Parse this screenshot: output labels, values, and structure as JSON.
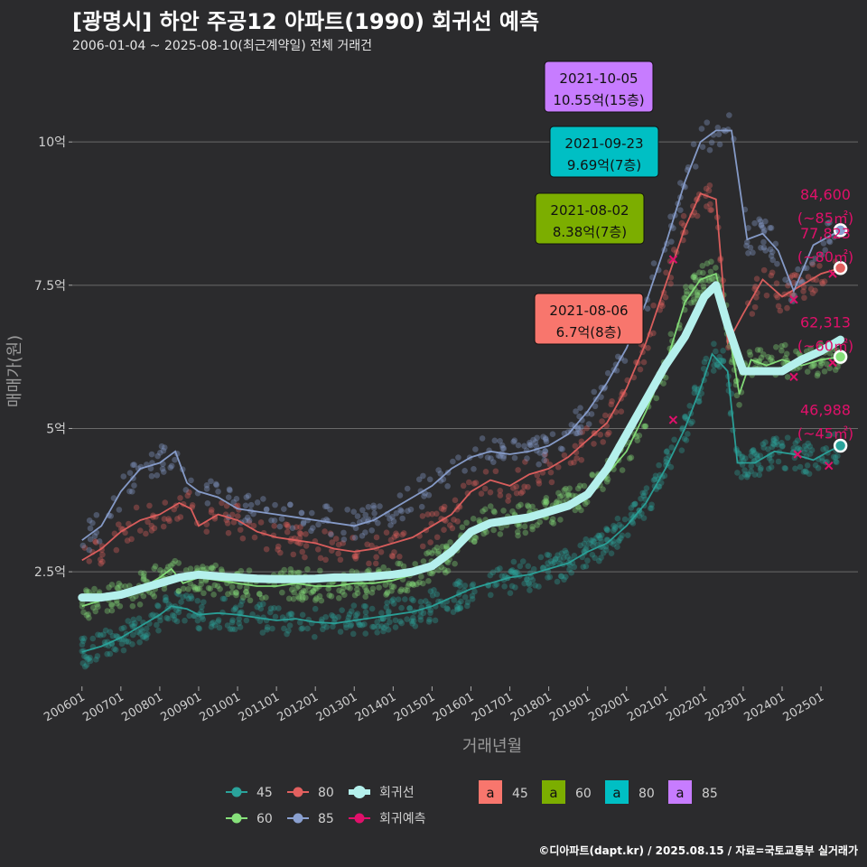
{
  "header": {
    "title": "[광명시] 하안 주공12 아파트(1990) 회귀선 예측",
    "subtitle": "2006-01-04 ~ 2025-08-10(최근계약일) 전체 거래건"
  },
  "footer": {
    "credit": "©디아파트(dapt.kr) / 2025.08.15 / 자료=국토교통부 실거래가"
  },
  "colors": {
    "background": "#2b2b2d",
    "grid": "#6a6a6a",
    "s45": "#2aa39b",
    "s60": "#86e07a",
    "s80": "#e2605f",
    "s85": "#8aa0d0",
    "regression": "#b4f0ec",
    "prediction": "#e0106a",
    "box45": "#f8766d",
    "box60": "#7cae00",
    "box80": "#00bfc4",
    "box85": "#c77cff"
  },
  "chart_data": {
    "type": "line",
    "xlabel": "거래년월",
    "ylabel": "매매가(원)",
    "x_ticks": [
      "200601",
      "200701",
      "200801",
      "200901",
      "201001",
      "201101",
      "201201",
      "201301",
      "201401",
      "201501",
      "201601",
      "201701",
      "201801",
      "201901",
      "202001",
      "202101",
      "202201",
      "202301",
      "202401",
      "202501"
    ],
    "y_ticks": [
      {
        "value": 2.5,
        "label": "2.5억"
      },
      {
        "value": 5,
        "label": "5억"
      },
      {
        "value": 7.5,
        "label": "7.5억"
      },
      {
        "value": 10,
        "label": "10억"
      }
    ],
    "ylim": [
      0.5,
      11.5
    ],
    "xlim": [
      2005.75,
      2025.95
    ],
    "series": [
      {
        "name": "45",
        "key": "s45",
        "points": [
          [
            2006.0,
            1.1
          ],
          [
            2006.5,
            1.2
          ],
          [
            2007.0,
            1.35
          ],
          [
            2007.5,
            1.55
          ],
          [
            2008.0,
            1.75
          ],
          [
            2008.3,
            1.9
          ],
          [
            2008.7,
            1.85
          ],
          [
            2009.0,
            1.75
          ],
          [
            2009.5,
            1.78
          ],
          [
            2010.0,
            1.75
          ],
          [
            2010.5,
            1.7
          ],
          [
            2011.0,
            1.65
          ],
          [
            2011.5,
            1.68
          ],
          [
            2012.0,
            1.62
          ],
          [
            2012.5,
            1.6
          ],
          [
            2013.0,
            1.65
          ],
          [
            2013.5,
            1.7
          ],
          [
            2014.0,
            1.75
          ],
          [
            2014.5,
            1.8
          ],
          [
            2015.0,
            1.9
          ],
          [
            2015.5,
            2.05
          ],
          [
            2016.0,
            2.2
          ],
          [
            2016.5,
            2.3
          ],
          [
            2017.0,
            2.4
          ],
          [
            2017.5,
            2.45
          ],
          [
            2018.0,
            2.55
          ],
          [
            2018.5,
            2.65
          ],
          [
            2019.0,
            2.85
          ],
          [
            2019.5,
            3.0
          ],
          [
            2020.0,
            3.3
          ],
          [
            2020.5,
            3.7
          ],
          [
            2021.0,
            4.3
          ],
          [
            2021.5,
            5.0
          ],
          [
            2021.9,
            5.7
          ],
          [
            2022.2,
            6.3
          ],
          [
            2022.6,
            6.0
          ],
          [
            2022.85,
            4.4
          ],
          [
            2023.3,
            4.4
          ],
          [
            2023.8,
            4.6
          ],
          [
            2024.3,
            4.55
          ],
          [
            2024.8,
            4.45
          ],
          [
            2025.2,
            4.6
          ],
          [
            2025.5,
            4.7
          ]
        ]
      },
      {
        "name": "60",
        "key": "s60",
        "points": [
          [
            2006.0,
            1.9
          ],
          [
            2006.5,
            2.0
          ],
          [
            2007.0,
            2.1
          ],
          [
            2007.5,
            2.2
          ],
          [
            2008.0,
            2.4
          ],
          [
            2008.3,
            2.55
          ],
          [
            2008.6,
            2.3
          ],
          [
            2009.0,
            2.4
          ],
          [
            2009.5,
            2.35
          ],
          [
            2010.0,
            2.3
          ],
          [
            2010.5,
            2.25
          ],
          [
            2011.0,
            2.25
          ],
          [
            2011.5,
            2.3
          ],
          [
            2012.0,
            2.25
          ],
          [
            2012.5,
            2.25
          ],
          [
            2013.0,
            2.3
          ],
          [
            2013.5,
            2.3
          ],
          [
            2014.0,
            2.35
          ],
          [
            2014.5,
            2.45
          ],
          [
            2015.0,
            2.6
          ],
          [
            2015.5,
            2.8
          ],
          [
            2016.0,
            3.2
          ],
          [
            2016.5,
            3.4
          ],
          [
            2017.0,
            3.35
          ],
          [
            2017.5,
            3.45
          ],
          [
            2018.0,
            3.55
          ],
          [
            2018.5,
            3.7
          ],
          [
            2019.0,
            3.9
          ],
          [
            2019.5,
            4.2
          ],
          [
            2020.0,
            4.6
          ],
          [
            2020.5,
            5.3
          ],
          [
            2021.0,
            6.1
          ],
          [
            2021.5,
            7.2
          ],
          [
            2021.9,
            7.6
          ],
          [
            2022.3,
            7.7
          ],
          [
            2022.6,
            6.8
          ],
          [
            2022.9,
            5.6
          ],
          [
            2023.2,
            6.2
          ],
          [
            2023.6,
            6.1
          ],
          [
            2024.0,
            6.2
          ],
          [
            2024.5,
            6.1
          ],
          [
            2025.0,
            6.2
          ],
          [
            2025.5,
            6.25
          ]
        ]
      },
      {
        "name": "80",
        "key": "s80",
        "points": [
          [
            2006.0,
            2.7
          ],
          [
            2006.5,
            2.9
          ],
          [
            2007.0,
            3.2
          ],
          [
            2007.5,
            3.4
          ],
          [
            2008.0,
            3.5
          ],
          [
            2008.5,
            3.7
          ],
          [
            2008.8,
            3.6
          ],
          [
            2009.0,
            3.3
          ],
          [
            2009.5,
            3.5
          ],
          [
            2010.0,
            3.4
          ],
          [
            2010.5,
            3.2
          ],
          [
            2011.0,
            3.1
          ],
          [
            2011.5,
            3.05
          ],
          [
            2012.0,
            3.0
          ],
          [
            2012.5,
            2.9
          ],
          [
            2013.0,
            2.85
          ],
          [
            2013.5,
            2.9
          ],
          [
            2014.0,
            3.0
          ],
          [
            2014.5,
            3.1
          ],
          [
            2015.0,
            3.3
          ],
          [
            2015.5,
            3.5
          ],
          [
            2016.0,
            3.9
          ],
          [
            2016.5,
            4.1
          ],
          [
            2017.0,
            4.0
          ],
          [
            2017.5,
            4.2
          ],
          [
            2018.0,
            4.3
          ],
          [
            2018.5,
            4.5
          ],
          [
            2019.0,
            4.8
          ],
          [
            2019.5,
            5.1
          ],
          [
            2020.0,
            5.7
          ],
          [
            2020.5,
            6.5
          ],
          [
            2021.0,
            7.5
          ],
          [
            2021.5,
            8.5
          ],
          [
            2021.9,
            9.1
          ],
          [
            2022.3,
            9.0
          ],
          [
            2022.6,
            6.5
          ],
          [
            2023.0,
            7.0
          ],
          [
            2023.5,
            7.6
          ],
          [
            2024.0,
            7.3
          ],
          [
            2024.5,
            7.5
          ],
          [
            2025.0,
            7.7
          ],
          [
            2025.5,
            7.8
          ]
        ]
      },
      {
        "name": "85",
        "key": "s85",
        "points": [
          [
            2006.0,
            3.05
          ],
          [
            2006.5,
            3.3
          ],
          [
            2007.0,
            3.9
          ],
          [
            2007.5,
            4.3
          ],
          [
            2008.0,
            4.4
          ],
          [
            2008.4,
            4.6
          ],
          [
            2008.7,
            4.05
          ],
          [
            2009.0,
            3.9
          ],
          [
            2009.5,
            3.8
          ],
          [
            2010.0,
            3.6
          ],
          [
            2010.5,
            3.55
          ],
          [
            2011.0,
            3.5
          ],
          [
            2011.5,
            3.45
          ],
          [
            2012.0,
            3.4
          ],
          [
            2012.5,
            3.35
          ],
          [
            2013.0,
            3.3
          ],
          [
            2013.5,
            3.4
          ],
          [
            2014.0,
            3.6
          ],
          [
            2014.5,
            3.8
          ],
          [
            2015.0,
            4.0
          ],
          [
            2015.5,
            4.3
          ],
          [
            2016.0,
            4.5
          ],
          [
            2016.5,
            4.6
          ],
          [
            2017.0,
            4.55
          ],
          [
            2017.5,
            4.6
          ],
          [
            2018.0,
            4.7
          ],
          [
            2018.5,
            4.9
          ],
          [
            2019.0,
            5.3
          ],
          [
            2019.5,
            5.8
          ],
          [
            2020.0,
            6.4
          ],
          [
            2020.5,
            7.2
          ],
          [
            2021.0,
            8.2
          ],
          [
            2021.5,
            9.3
          ],
          [
            2021.9,
            10.0
          ],
          [
            2022.3,
            10.2
          ],
          [
            2022.7,
            10.2
          ],
          [
            2023.1,
            8.3
          ],
          [
            2023.5,
            8.4
          ],
          [
            2023.9,
            8.1
          ],
          [
            2024.3,
            7.4
          ],
          [
            2024.8,
            8.2
          ],
          [
            2025.2,
            8.35
          ],
          [
            2025.5,
            8.46
          ]
        ]
      }
    ],
    "regression": {
      "name": "회귀선",
      "points": [
        [
          2006.0,
          2.05
        ],
        [
          2006.5,
          2.05
        ],
        [
          2007.0,
          2.1
        ],
        [
          2007.5,
          2.2
        ],
        [
          2008.0,
          2.3
        ],
        [
          2008.5,
          2.4
        ],
        [
          2009.0,
          2.45
        ],
        [
          2009.5,
          2.42
        ],
        [
          2010.0,
          2.4
        ],
        [
          2010.5,
          2.38
        ],
        [
          2011.0,
          2.37
        ],
        [
          2011.5,
          2.37
        ],
        [
          2012.0,
          2.38
        ],
        [
          2012.5,
          2.4
        ],
        [
          2013.0,
          2.4
        ],
        [
          2013.5,
          2.42
        ],
        [
          2014.0,
          2.45
        ],
        [
          2014.5,
          2.5
        ],
        [
          2015.0,
          2.6
        ],
        [
          2015.5,
          2.85
        ],
        [
          2016.0,
          3.2
        ],
        [
          2016.5,
          3.35
        ],
        [
          2017.0,
          3.4
        ],
        [
          2017.5,
          3.45
        ],
        [
          2018.0,
          3.55
        ],
        [
          2018.5,
          3.65
        ],
        [
          2019.0,
          3.85
        ],
        [
          2019.5,
          4.3
        ],
        [
          2020.0,
          4.9
        ],
        [
          2020.5,
          5.5
        ],
        [
          2021.0,
          6.1
        ],
        [
          2021.5,
          6.6
        ],
        [
          2022.0,
          7.3
        ],
        [
          2022.3,
          7.5
        ],
        [
          2022.6,
          6.8
        ],
        [
          2023.0,
          6.0
        ],
        [
          2023.5,
          6.0
        ],
        [
          2024.0,
          6.0
        ],
        [
          2024.5,
          6.2
        ],
        [
          2025.0,
          6.35
        ],
        [
          2025.5,
          6.55
        ]
      ]
    },
    "prediction": {
      "name": "회귀예측",
      "points": [
        [
          2024.3,
          7.25
        ],
        [
          2025.3,
          7.7
        ],
        [
          2024.3,
          5.9
        ],
        [
          2025.3,
          6.15
        ],
        [
          2024.4,
          4.55
        ],
        [
          2025.2,
          4.35
        ],
        [
          2021.2,
          7.95
        ],
        [
          2021.2,
          5.15
        ]
      ]
    },
    "callouts": [
      {
        "date": "2021-10-05",
        "price": "10.55억(15층)",
        "key": "box85"
      },
      {
        "date": "2021-09-23",
        "price": "9.69억(7층)",
        "key": "box80"
      },
      {
        "date": "2021-08-02",
        "price": "8.38억(7층)",
        "key": "box60"
      },
      {
        "date": "2021-08-06",
        "price": "6.7억(8층)",
        "key": "box45"
      }
    ],
    "end_labels": [
      {
        "value": "84,600",
        "area": "(~85㎡)",
        "key": "s85",
        "y": 8.46
      },
      {
        "value": "77,823",
        "area": "(~80㎡)",
        "key": "s80",
        "y": 7.78
      },
      {
        "value": "62,313",
        "area": "(~60㎡)",
        "key": "s60",
        "y": 6.23
      },
      {
        "value": "46,988",
        "area": "(~45㎡)",
        "key": "s45",
        "y": 4.7
      }
    ],
    "legend": {
      "lines": [
        "45",
        "80",
        "회귀선",
        "60",
        "85",
        "회귀예측"
      ],
      "boxes": [
        {
          "glyph": "a",
          "label": "45",
          "key": "box45"
        },
        {
          "glyph": "a",
          "label": "60",
          "key": "box60"
        },
        {
          "glyph": "a",
          "label": "80",
          "key": "box80"
        },
        {
          "glyph": "a",
          "label": "85",
          "key": "box85"
        }
      ]
    }
  }
}
